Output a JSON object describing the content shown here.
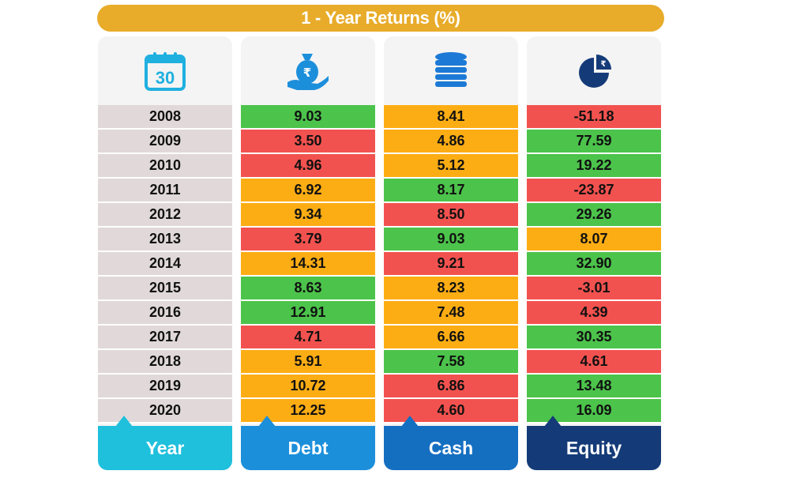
{
  "title": "1 - Year Returns (%)",
  "colors": {
    "green": "#4cc34b",
    "red": "#f2524f",
    "orange": "#fdad14",
    "year_bg": "#e1d9d9",
    "title_bg": "#e8ac2a",
    "year_footer": "#1fc0dc",
    "debt_footer": "#1c8fdb",
    "cash_footer": "#156fc1",
    "equity_footer": "#143b78"
  },
  "columns": [
    {
      "key": "year",
      "label": "Year",
      "icon": "calendar-icon",
      "icon_text": "30",
      "footer_color": "#1fc0dc"
    },
    {
      "key": "debt",
      "label": "Debt",
      "icon": "money-bag-icon",
      "footer_color": "#1c8fdb"
    },
    {
      "key": "cash",
      "label": "Cash",
      "icon": "coin-stack-icon",
      "footer_color": "#156fc1"
    },
    {
      "key": "equity",
      "label": "Equity",
      "icon": "pie-chart-icon",
      "footer_color": "#143b78"
    }
  ],
  "rows": [
    {
      "year": "2008",
      "debt": {
        "value": "9.03",
        "color": "green"
      },
      "cash": {
        "value": "8.41",
        "color": "orange"
      },
      "equity": {
        "value": "-51.18",
        "color": "red"
      }
    },
    {
      "year": "2009",
      "debt": {
        "value": "3.50",
        "color": "red"
      },
      "cash": {
        "value": "4.86",
        "color": "orange"
      },
      "equity": {
        "value": "77.59",
        "color": "green"
      }
    },
    {
      "year": "2010",
      "debt": {
        "value": "4.96",
        "color": "red"
      },
      "cash": {
        "value": "5.12",
        "color": "orange"
      },
      "equity": {
        "value": "19.22",
        "color": "green"
      }
    },
    {
      "year": "2011",
      "debt": {
        "value": "6.92",
        "color": "orange"
      },
      "cash": {
        "value": "8.17",
        "color": "green"
      },
      "equity": {
        "value": "-23.87",
        "color": "red"
      }
    },
    {
      "year": "2012",
      "debt": {
        "value": "9.34",
        "color": "orange"
      },
      "cash": {
        "value": "8.50",
        "color": "red"
      },
      "equity": {
        "value": "29.26",
        "color": "green"
      }
    },
    {
      "year": "2013",
      "debt": {
        "value": "3.79",
        "color": "red"
      },
      "cash": {
        "value": "9.03",
        "color": "green"
      },
      "equity": {
        "value": "8.07",
        "color": "orange"
      }
    },
    {
      "year": "2014",
      "debt": {
        "value": "14.31",
        "color": "orange"
      },
      "cash": {
        "value": "9.21",
        "color": "red"
      },
      "equity": {
        "value": "32.90",
        "color": "green"
      }
    },
    {
      "year": "2015",
      "debt": {
        "value": "8.63",
        "color": "green"
      },
      "cash": {
        "value": "8.23",
        "color": "orange"
      },
      "equity": {
        "value": "-3.01",
        "color": "red"
      }
    },
    {
      "year": "2016",
      "debt": {
        "value": "12.91",
        "color": "green"
      },
      "cash": {
        "value": "7.48",
        "color": "orange"
      },
      "equity": {
        "value": "4.39",
        "color": "red"
      }
    },
    {
      "year": "2017",
      "debt": {
        "value": "4.71",
        "color": "red"
      },
      "cash": {
        "value": "6.66",
        "color": "orange"
      },
      "equity": {
        "value": "30.35",
        "color": "green"
      }
    },
    {
      "year": "2018",
      "debt": {
        "value": "5.91",
        "color": "orange"
      },
      "cash": {
        "value": "7.58",
        "color": "green"
      },
      "equity": {
        "value": "4.61",
        "color": "red"
      }
    },
    {
      "year": "2019",
      "debt": {
        "value": "10.72",
        "color": "orange"
      },
      "cash": {
        "value": "6.86",
        "color": "red"
      },
      "equity": {
        "value": "13.48",
        "color": "green"
      }
    },
    {
      "year": "2020",
      "debt": {
        "value": "12.25",
        "color": "orange"
      },
      "cash": {
        "value": "4.60",
        "color": "red"
      },
      "equity": {
        "value": "16.09",
        "color": "green"
      }
    }
  ]
}
